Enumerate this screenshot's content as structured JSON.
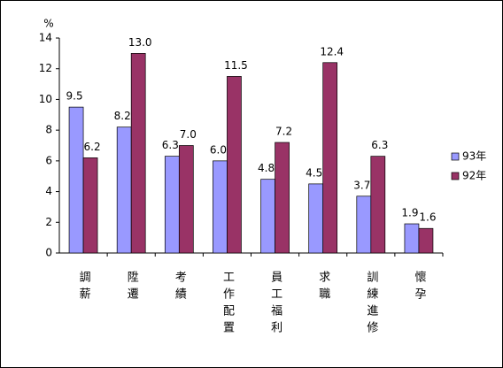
{
  "chart_data": {
    "type": "bar",
    "y_label": "%",
    "categories": [
      "調薪",
      "陞遷",
      "考績",
      "工作配置",
      "員工福利",
      "求職",
      "訓練進修",
      "懷孕"
    ],
    "series": [
      {
        "name": "93年",
        "color": "#9999ff",
        "values": [
          9.5,
          8.2,
          6.3,
          6.0,
          4.8,
          4.5,
          3.7,
          1.9
        ],
        "value_labels": [
          "9.5",
          "8.2",
          "6.3",
          "6.0",
          "4.8",
          "4.5",
          "3.7",
          "1.9"
        ]
      },
      {
        "name": "92年",
        "color": "#993366",
        "values": [
          6.2,
          13.0,
          7.0,
          11.5,
          7.2,
          12.4,
          6.3,
          1.6
        ],
        "value_labels": [
          "6.2",
          "13.0",
          "7.0",
          "11.5",
          "7.2",
          "12.4",
          "6.3",
          "1.6"
        ]
      }
    ],
    "ylim": [
      0,
      14
    ],
    "yticks": [
      0,
      2,
      4,
      6,
      8,
      10,
      12,
      14
    ],
    "grid": false,
    "legend": "right"
  }
}
